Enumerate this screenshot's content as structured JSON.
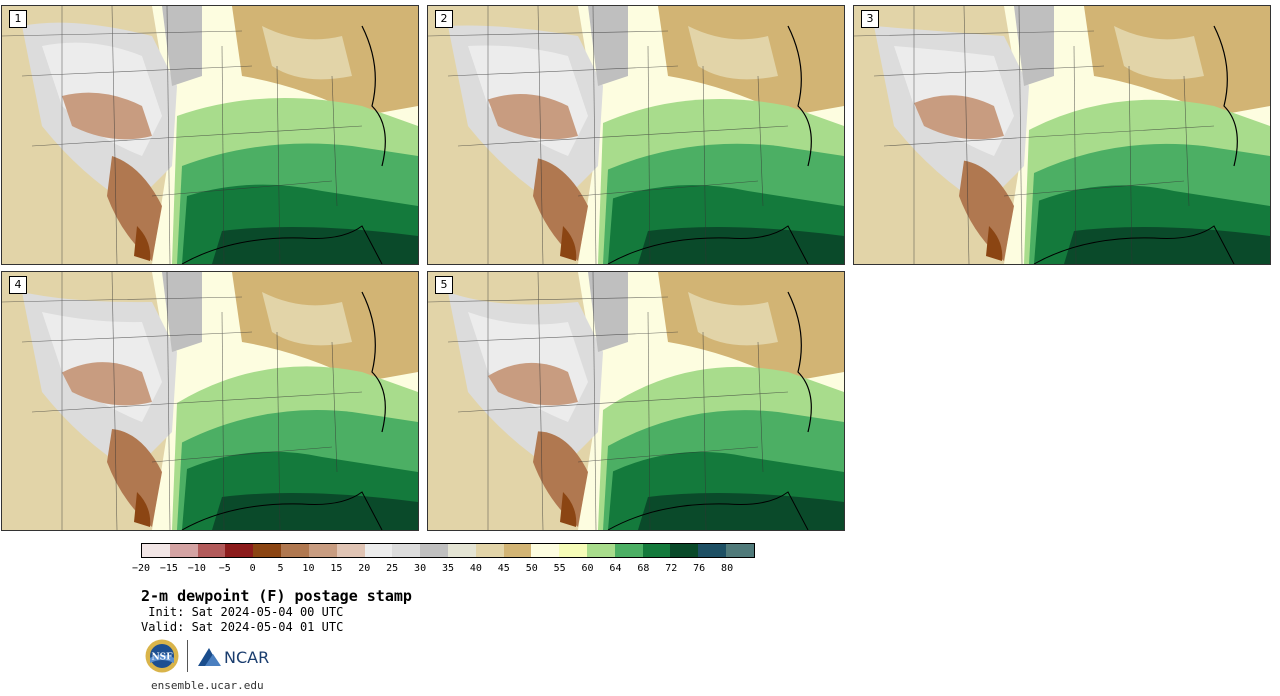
{
  "panels": [
    {
      "label": "1"
    },
    {
      "label": "2"
    },
    {
      "label": "3"
    },
    {
      "label": "4"
    },
    {
      "label": "5"
    }
  ],
  "colorbar": {
    "ticks": [
      "−20",
      "−15",
      "−10",
      "−5",
      "0",
      "5",
      "10",
      "15",
      "20",
      "25",
      "30",
      "35",
      "40",
      "45",
      "50",
      "55",
      "60",
      "64",
      "68",
      "72",
      "76",
      "80"
    ],
    "colors": [
      "#f2e6e6",
      "#d4a3a3",
      "#b25a5a",
      "#8c1c1c",
      "#8b4513",
      "#b07850",
      "#c89c80",
      "#e0c4b4",
      "#ececec",
      "#dcdcdc",
      "#bfbfbf",
      "#e4e4d4",
      "#e2d4a8",
      "#d2b474",
      "#fdfde0",
      "#f6fcb8",
      "#a8dc8c",
      "#4caf64",
      "#147a3c",
      "#0a4a2a",
      "#1e5064",
      "#507a7a"
    ]
  },
  "title": "2-m dewpoint (F) postage stamp",
  "init": " Init: Sat 2024-05-04 00 UTC",
  "valid": "Valid: Sat 2024-05-04 01 UTC",
  "logos": {
    "nsf_text": "NSF",
    "ncar_text": "NCAR"
  },
  "site": "ensemble.ucar.edu"
}
